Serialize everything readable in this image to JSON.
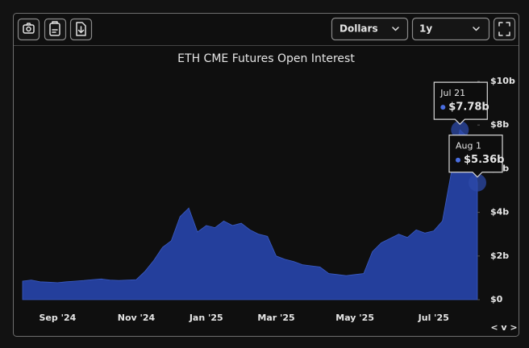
{
  "controls": {
    "unit": "Dollars",
    "range": "1y",
    "nav": "< v >"
  },
  "chart_data": {
    "type": "area",
    "title": "ETH CME Futures Open Interest",
    "categories": [
      null,
      null,
      null,
      null,
      "Sep '24",
      null,
      null,
      null,
      null,
      null,
      null,
      null,
      null,
      "Nov '24",
      null,
      null,
      null,
      null,
      null,
      null,
      null,
      "Jan '25",
      null,
      null,
      null,
      null,
      null,
      null,
      null,
      "Mar '25",
      null,
      null,
      null,
      null,
      null,
      null,
      null,
      null,
      "May '25",
      null,
      null,
      null,
      null,
      null,
      null,
      null,
      null,
      "Jul '25",
      null,
      null,
      null,
      null,
      null
    ],
    "series": [
      {
        "name": "Open Interest",
        "color": "#243f9c",
        "values": [
          0.85,
          0.9,
          0.82,
          0.8,
          0.78,
          0.82,
          0.85,
          0.88,
          0.92,
          0.95,
          0.9,
          0.88,
          0.9,
          0.92,
          1.3,
          1.8,
          2.4,
          2.7,
          3.8,
          4.2,
          3.1,
          3.4,
          3.3,
          3.6,
          3.4,
          3.5,
          3.2,
          3.0,
          2.9,
          2.0,
          1.85,
          1.75,
          1.6,
          1.55,
          1.5,
          1.2,
          1.15,
          1.1,
          1.15,
          1.2,
          2.2,
          2.6,
          2.8,
          3.0,
          2.85,
          3.2,
          3.05,
          3.15,
          3.6,
          5.8,
          7.78,
          7.4,
          5.36
        ]
      }
    ],
    "ylim": [
      0,
      10
    ],
    "yticks": [
      {
        "value": 0,
        "label": "$0"
      },
      {
        "value": 2,
        "label": "$2b"
      },
      {
        "value": 4,
        "label": "$4b"
      },
      {
        "value": 6,
        "label": "$6b"
      },
      {
        "value": 8,
        "label": "$8b"
      },
      {
        "value": 10,
        "label": "$10b"
      }
    ],
    "annotations": [
      {
        "x": "Jul 21",
        "y": 7.78,
        "label": "$7.78b"
      },
      {
        "x": "Aug 1",
        "y": 5.36,
        "label": "$5.36b"
      }
    ]
  }
}
